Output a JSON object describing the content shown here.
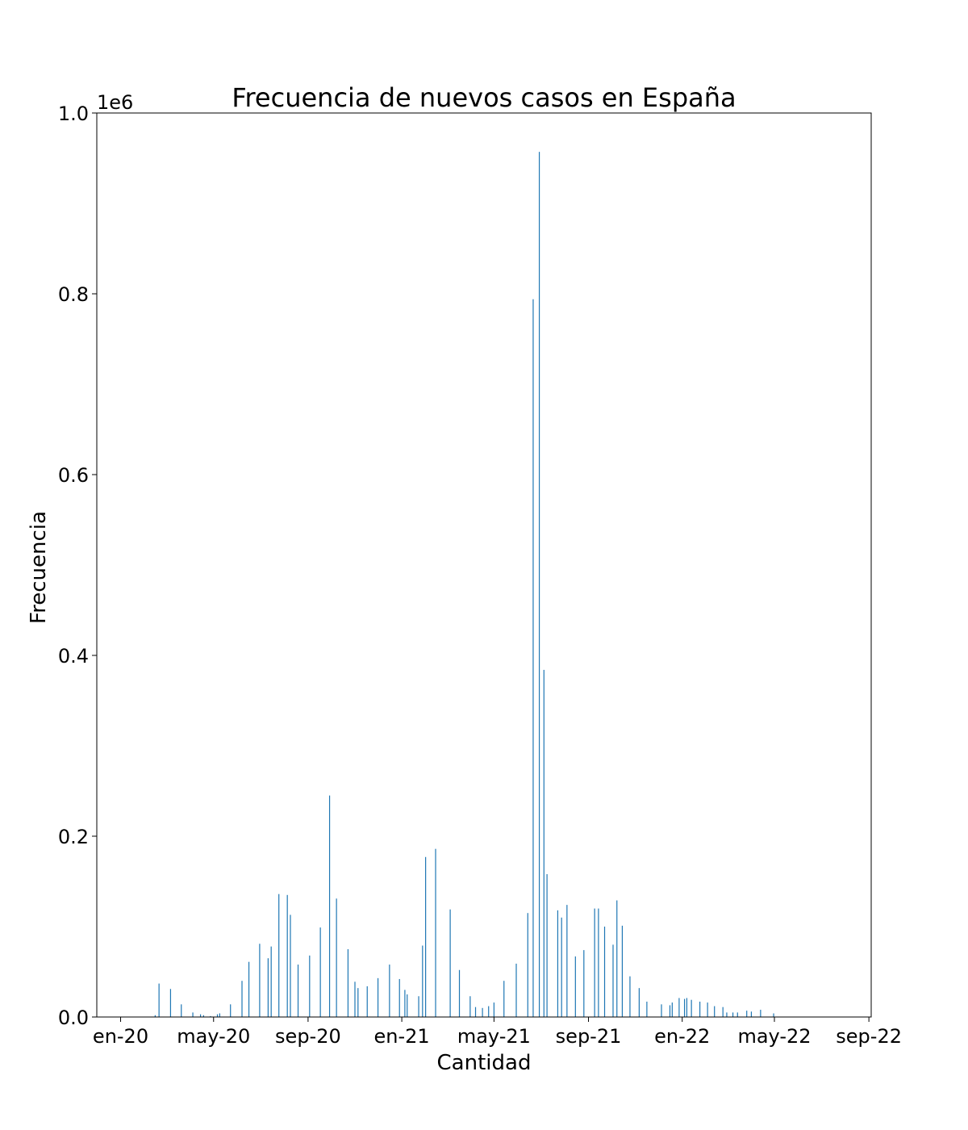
{
  "chart_data": {
    "type": "bar",
    "title": "Frecuencia de nuevos casos en España",
    "xlabel": "Cantidad",
    "ylabel": "Frecuencia",
    "y_offset_label": "1e6",
    "y_scale": 1000000,
    "ylim": [
      0,
      1000000
    ],
    "xlim": [
      "2019-12-01",
      "2022-09-04"
    ],
    "x_ticks": [
      {
        "date": "2020-01-01",
        "label": "en-20"
      },
      {
        "date": "2020-05-01",
        "label": "may-20"
      },
      {
        "date": "2020-09-01",
        "label": "sep-20"
      },
      {
        "date": "2021-01-01",
        "label": "en-21"
      },
      {
        "date": "2021-05-01",
        "label": "may-21"
      },
      {
        "date": "2021-09-01",
        "label": "sep-21"
      },
      {
        "date": "2022-01-01",
        "label": "en-22"
      },
      {
        "date": "2022-05-01",
        "label": "may-22"
      },
      {
        "date": "2022-09-01",
        "label": "sep-22"
      }
    ],
    "y_ticks": [
      "0.0",
      "0.2",
      "0.4",
      "0.6",
      "0.8",
      "1.0"
    ],
    "y_tick_values": [
      0,
      0.2,
      0.4,
      0.6,
      0.8,
      1.0
    ],
    "bar_color": "#1f77b4",
    "grid": false,
    "series": [
      {
        "x": [
          "2020-02-15",
          "2020-02-20",
          "2020-03-06",
          "2020-03-20",
          "2020-04-04",
          "2020-04-14",
          "2020-04-18",
          "2020-04-27",
          "2020-05-06",
          "2020-05-09",
          "2020-05-23",
          "2020-06-07",
          "2020-06-16",
          "2020-06-30",
          "2020-07-11",
          "2020-07-15",
          "2020-07-25",
          "2020-08-05",
          "2020-08-09",
          "2020-08-19",
          "2020-09-03",
          "2020-09-17",
          "2020-09-29",
          "2020-10-08",
          "2020-10-23",
          "2020-11-01",
          "2020-11-05",
          "2020-11-17",
          "2020-12-01",
          "2020-12-16",
          "2020-12-29",
          "2021-01-05",
          "2021-01-08",
          "2021-01-23",
          "2021-01-28",
          "2021-02-01",
          "2021-02-14",
          "2021-03-05",
          "2021-03-17",
          "2021-03-31",
          "2021-04-07",
          "2021-04-16",
          "2021-04-24",
          "2021-05-01",
          "2021-05-14",
          "2021-05-30",
          "2021-06-14",
          "2021-06-21",
          "2021-06-29",
          "2021-07-05",
          "2021-07-09",
          "2021-07-23",
          "2021-07-28",
          "2021-08-04",
          "2021-08-15",
          "2021-08-26",
          "2021-09-09",
          "2021-09-14",
          "2021-09-22",
          "2021-10-03",
          "2021-10-08",
          "2021-10-15",
          "2021-10-25",
          "2021-11-06",
          "2021-11-16",
          "2021-12-05",
          "2021-12-16",
          "2021-12-19",
          "2021-12-28",
          "2022-01-04",
          "2022-01-07",
          "2022-01-13",
          "2022-01-24",
          "2022-02-03",
          "2022-02-12",
          "2022-02-23",
          "2022-02-28",
          "2022-03-08",
          "2022-03-14",
          "2022-03-26",
          "2022-04-01",
          "2022-04-13",
          "2022-04-30"
        ],
        "values": [
          2000,
          37000,
          31000,
          14000,
          5000,
          3000,
          2000,
          1000,
          3000,
          4000,
          14000,
          40000,
          61000,
          81000,
          65000,
          78000,
          136000,
          135000,
          113000,
          58000,
          68000,
          99000,
          245000,
          131000,
          75000,
          39000,
          32000,
          34000,
          43000,
          58000,
          42000,
          30000,
          25000,
          23000,
          79000,
          177000,
          186000,
          119000,
          52000,
          23000,
          11000,
          10000,
          12000,
          16000,
          40000,
          59000,
          115000,
          794000,
          957000,
          384000,
          158000,
          118000,
          110000,
          124000,
          67000,
          74000,
          120000,
          120000,
          100000,
          80000,
          129000,
          101000,
          45000,
          32000,
          17000,
          14000,
          13000,
          16000,
          21000,
          20000,
          21000,
          19000,
          17000,
          16000,
          12000,
          11000,
          5000,
          5000,
          5000,
          7000,
          6000,
          8000,
          4000
        ]
      }
    ]
  }
}
